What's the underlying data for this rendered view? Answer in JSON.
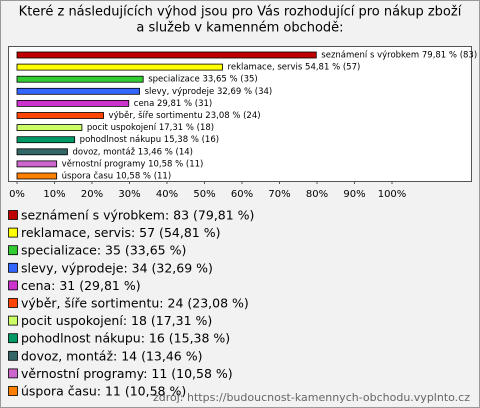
{
  "chart_data": {
    "type": "hbar",
    "title": [
      "Které z následujících výhod jsou pro Vás rozhodující pro nákup zboží",
      "a služeb v kamenném obchodě:"
    ],
    "categories": [
      "seznámení s výrobkem",
      "reklamace, servis",
      "specializace",
      "slevy, výprodeje",
      "cena",
      "výběr, šíře sortimentu",
      "pocit uspokojení",
      "pohodlnost nákupu",
      "dovoz, montáž",
      "věrnostní programy",
      "úspora času"
    ],
    "values": [
      79.81,
      54.81,
      33.65,
      32.69,
      29.81,
      23.08,
      17.31,
      15.38,
      13.46,
      10.58,
      10.58
    ],
    "value_labels": [
      "seznámení s výrobkem 79,81 % (83)",
      "reklamace, servis 54,81 % (57)",
      "specializace 33,65 % (35)",
      "slevy, výprodeje 32,69 % (34)",
      "cena 29,81 % (31)",
      "výběr, šíře sortimentu 23,08 % (24)",
      "pocit uspokojení 17,31 % (18)",
      "pohodlnost nákupu 15,38 % (16)",
      "dovoz, montáž 13,46 % (14)",
      "věrnostní programy 10,58 % (11)",
      "úspora času 10,58 % (11)"
    ],
    "legend_labels": [
      "seznámení s výrobkem: 83 (79,81 %)",
      "reklamace, servis: 57 (54,81 %)",
      "specializace: 35 (33,65 %)",
      "slevy, výprodeje: 34 (32,69 %)",
      "cena: 31 (29,81 %)",
      "výběr, šíře sortimentu: 24 (23,08 %)",
      "pocit uspokojení: 18 (17,31 %)",
      "pohodlnost nákupu: 16 (15,38 %)",
      "dovoz, montáž: 14 (13,46 %)",
      "věrnostní programy: 11 (10,58 %)",
      "úspora času: 11 (10,58 %)"
    ],
    "colors": [
      "#c00000",
      "#ffff00",
      "#33cc33",
      "#3366ff",
      "#cc33cc",
      "#ff4500",
      "#ccff66",
      "#009966",
      "#336666",
      "#cc66cc",
      "#ff8000"
    ],
    "xlim": [
      0,
      100
    ],
    "xticks": [
      {
        "value": 0,
        "label": "0%"
      },
      {
        "value": 10,
        "label": "10%"
      },
      {
        "value": 20,
        "label": "20%"
      },
      {
        "value": 30,
        "label": "30%"
      },
      {
        "value": 40,
        "label": "40%"
      },
      {
        "value": 50,
        "label": "50%"
      },
      {
        "value": 60,
        "label": "60%"
      },
      {
        "value": 70,
        "label": "70%"
      },
      {
        "value": 80,
        "label": "80%"
      },
      {
        "value": 90,
        "label": "90%"
      },
      {
        "value": 100,
        "label": "100%"
      }
    ],
    "source": "zdroj: https://budoucnost-kamennych-obchodu.vyplnto.cz"
  }
}
